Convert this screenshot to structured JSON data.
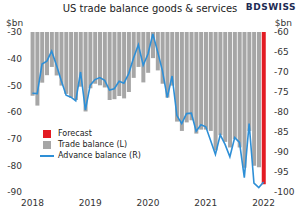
{
  "chart_data": {
    "type": "bar",
    "title": "US trade balance goods & services",
    "logo": "BDSWISS",
    "y_label": "$bn",
    "y2_label": "$bn",
    "categories": [
      "2018",
      null,
      null,
      null,
      null,
      null,
      null,
      null,
      null,
      null,
      null,
      null,
      "2019",
      null,
      null,
      null,
      null,
      null,
      null,
      null,
      null,
      null,
      null,
      null,
      "2020",
      null,
      null,
      null,
      null,
      null,
      null,
      null,
      null,
      null,
      null,
      null,
      "2021",
      null,
      null,
      null,
      null,
      null,
      null,
      null,
      null,
      null,
      null,
      null,
      "2022"
    ],
    "series": [
      {
        "name": "Forecast",
        "type": "bar",
        "color": "#e31b23",
        "values": [
          null,
          null,
          null,
          null,
          null,
          null,
          null,
          null,
          null,
          null,
          null,
          null,
          null,
          null,
          null,
          null,
          null,
          null,
          null,
          null,
          null,
          null,
          null,
          null,
          null,
          null,
          null,
          null,
          null,
          null,
          null,
          null,
          null,
          null,
          null,
          null,
          null,
          null,
          null,
          null,
          null,
          null,
          null,
          null,
          null,
          null,
          null,
          null,
          -87.1
        ]
      },
      {
        "name": "Trade balance (L)",
        "type": "bar",
        "color": "#a6a6a6",
        "values": [
          -53.9,
          -57.6,
          -49.0,
          -46.2,
          -43.1,
          -46.3,
          -50.1,
          -53.2,
          -54.6,
          -55.5,
          -50.5,
          -59.8,
          -51.1,
          -49.4,
          -50.0,
          -50.8,
          -55.5,
          -55.2,
          -54.0,
          -54.9,
          -52.5,
          -47.2,
          -43.1,
          -48.9,
          -45.3,
          -39.8,
          -44.4,
          -49.4,
          -54.6,
          -50.1,
          -63.6,
          -67.1,
          -63.9,
          -63.1,
          -68.1,
          -66.6,
          -66.6,
          -67.1,
          -74.4,
          -68.7,
          -71.2,
          -73.3,
          -70.1,
          -73.3,
          -80.9,
          -67.1,
          -80.2,
          -80.7,
          null
        ]
      },
      {
        "name": "Advance balance (R)",
        "type": "line",
        "axis": "y2",
        "color": "#2e8fd6",
        "values": [
          -75.3,
          -75.4,
          -68.0,
          -67.3,
          -64.8,
          -68.3,
          -72.2,
          -75.8,
          -76.3,
          -77.2,
          -70.0,
          -79.5,
          -73.3,
          -71.9,
          -71.4,
          -72.1,
          -74.5,
          -74.2,
          -72.3,
          -72.8,
          -70.4,
          -66.5,
          -63.2,
          -68.3,
          -65.5,
          -60.5,
          -64.9,
          -69.7,
          -76.4,
          -71.0,
          -80.9,
          -82.9,
          -80.4,
          -80.3,
          -84.8,
          -83.2,
          -83.7,
          -87.1,
          -90.6,
          -85.7,
          -88.1,
          -91.2,
          -86.4,
          -87.6,
          -96.4,
          -82.9,
          -97.8,
          -98.9,
          -97.5
        ]
      }
    ],
    "ylim": [
      -90,
      -30
    ],
    "yticks": [
      -30,
      -40,
      -50,
      -60,
      -70,
      -80,
      -90
    ],
    "y2lim": [
      -100,
      -60
    ],
    "y2ticks": [
      -60,
      -65,
      -70,
      -75,
      -80,
      -85,
      -90,
      -95,
      -100
    ],
    "grid": false,
    "legend": "lower left"
  }
}
